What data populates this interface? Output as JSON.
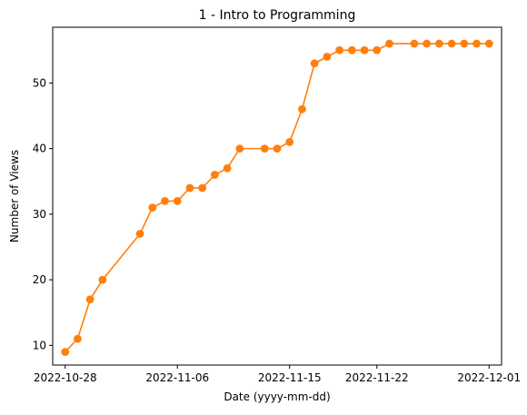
{
  "chart_data": {
    "type": "line",
    "title": "1 - Intro to Programming",
    "xlabel": "Date (yyyy-mm-dd)",
    "ylabel": "Number of Views",
    "xlim": [
      "2022-10-27",
      "2022-12-02"
    ],
    "ylim": [
      7,
      58.5
    ],
    "x_ticks": [
      "2022-10-28",
      "2022-11-06",
      "2022-11-15",
      "2022-11-22",
      "2022-12-01"
    ],
    "y_ticks": [
      10,
      20,
      30,
      40,
      50
    ],
    "grid": false,
    "series": [
      {
        "color": "#ff7f0e",
        "marker": "circle",
        "x": [
          "2022-10-28",
          "2022-10-29",
          "2022-10-30",
          "2022-10-31",
          "2022-11-03",
          "2022-11-04",
          "2022-11-05",
          "2022-11-06",
          "2022-11-07",
          "2022-11-08",
          "2022-11-09",
          "2022-11-10",
          "2022-11-11",
          "2022-11-13",
          "2022-11-14",
          "2022-11-15",
          "2022-11-16",
          "2022-11-17",
          "2022-11-18",
          "2022-11-19",
          "2022-11-20",
          "2022-11-21",
          "2022-11-22",
          "2022-11-23",
          "2022-11-25",
          "2022-11-26",
          "2022-11-27",
          "2022-11-28",
          "2022-11-29",
          "2022-11-30",
          "2022-12-01"
        ],
        "values": [
          9,
          11,
          17,
          20,
          27,
          31,
          32,
          32,
          34,
          34,
          36,
          37,
          40,
          40,
          40,
          41,
          46,
          53,
          54,
          55,
          55,
          55,
          55,
          56,
          56,
          56,
          56,
          56,
          56,
          56,
          56
        ]
      }
    ]
  }
}
